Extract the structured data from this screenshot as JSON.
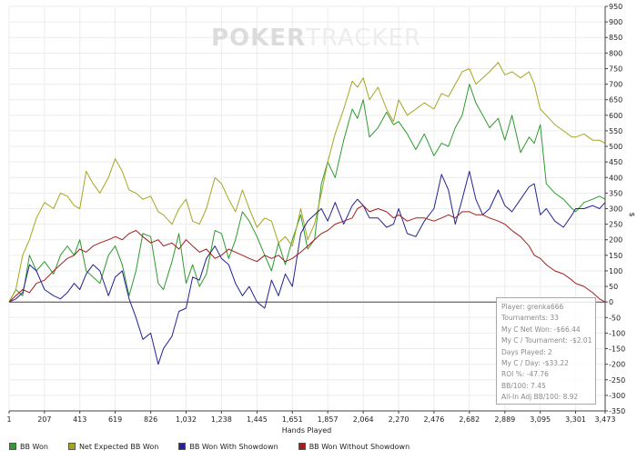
{
  "watermark": {
    "part1": "POKER",
    "part2": "TRACKER"
  },
  "chart_data": {
    "type": "line",
    "xlabel": "Hands Played",
    "ylabel": "$",
    "xlim": [
      1,
      3473
    ],
    "ylim": [
      -350,
      950
    ],
    "x_ticks": [
      "1",
      "207",
      "413",
      "619",
      "826",
      "1,032",
      "1,238",
      "1,445",
      "1,651",
      "1,857",
      "2,064",
      "2,270",
      "2,476",
      "2,682",
      "2,889",
      "3,095",
      "3,301",
      "3,473"
    ],
    "x_tick_values": [
      1,
      207,
      413,
      619,
      826,
      1032,
      1238,
      1445,
      1651,
      1857,
      2064,
      2270,
      2476,
      2682,
      2889,
      3095,
      3301,
      3473
    ],
    "y_ticks": [
      -350,
      -300,
      -250,
      -200,
      -150,
      -100,
      -50,
      0,
      50,
      100,
      150,
      200,
      250,
      300,
      350,
      400,
      450,
      500,
      550,
      600,
      650,
      700,
      750,
      800,
      850,
      900,
      950
    ],
    "legend_position": "bottom",
    "series": [
      {
        "name": "BB Won",
        "color": "#2f9a2f",
        "x": [
          1,
          40,
          80,
          120,
          160,
          207,
          260,
          300,
          340,
          380,
          413,
          450,
          490,
          530,
          580,
          619,
          660,
          700,
          740,
          780,
          826,
          870,
          900,
          950,
          990,
          1032,
          1070,
          1110,
          1150,
          1200,
          1238,
          1280,
          1320,
          1360,
          1400,
          1445,
          1490,
          1530,
          1570,
          1610,
          1651,
          1700,
          1740,
          1780,
          1820,
          1857,
          1900,
          1950,
          2000,
          2030,
          2064,
          2100,
          2150,
          2200,
          2240,
          2270,
          2320,
          2370,
          2420,
          2476,
          2520,
          2560,
          2600,
          2640,
          2682,
          2720,
          2760,
          2800,
          2850,
          2889,
          2930,
          2980,
          3030,
          3060,
          3095,
          3130,
          3180,
          3230,
          3280,
          3301,
          3350,
          3400,
          3440,
          3473
        ],
        "y": [
          0,
          40,
          20,
          150,
          100,
          130,
          90,
          150,
          180,
          150,
          200,
          100,
          80,
          60,
          150,
          180,
          120,
          20,
          100,
          220,
          210,
          60,
          40,
          130,
          220,
          60,
          120,
          50,
          90,
          230,
          220,
          140,
          200,
          290,
          260,
          210,
          150,
          100,
          190,
          120,
          200,
          280,
          170,
          200,
          380,
          450,
          400,
          520,
          620,
          590,
          650,
          530,
          560,
          610,
          570,
          580,
          540,
          490,
          540,
          470,
          510,
          500,
          560,
          600,
          700,
          640,
          600,
          560,
          590,
          520,
          600,
          480,
          530,
          510,
          570,
          380,
          350,
          330,
          300,
          290,
          320,
          330,
          340,
          330
        ]
      },
      {
        "name": "Net Expected BB Won",
        "color": "#a6a61f",
        "x": [
          1,
          40,
          80,
          120,
          160,
          207,
          260,
          300,
          340,
          380,
          413,
          450,
          490,
          530,
          580,
          619,
          660,
          700,
          740,
          780,
          826,
          870,
          900,
          950,
          990,
          1032,
          1070,
          1110,
          1150,
          1200,
          1238,
          1280,
          1320,
          1360,
          1400,
          1445,
          1490,
          1530,
          1570,
          1610,
          1651,
          1700,
          1740,
          1780,
          1820,
          1857,
          1900,
          1950,
          2000,
          2030,
          2064,
          2100,
          2150,
          2200,
          2240,
          2270,
          2320,
          2370,
          2420,
          2476,
          2520,
          2560,
          2600,
          2640,
          2682,
          2720,
          2760,
          2800,
          2850,
          2889,
          2930,
          2980,
          3030,
          3060,
          3095,
          3130,
          3180,
          3230,
          3280,
          3301,
          3350,
          3400,
          3440,
          3473
        ],
        "y": [
          0,
          40,
          150,
          200,
          270,
          320,
          300,
          350,
          340,
          310,
          300,
          420,
          380,
          350,
          400,
          460,
          420,
          360,
          350,
          330,
          340,
          290,
          280,
          250,
          300,
          330,
          260,
          250,
          300,
          400,
          380,
          330,
          290,
          360,
          300,
          240,
          270,
          260,
          190,
          210,
          180,
          300,
          200,
          250,
          350,
          450,
          540,
          620,
          710,
          690,
          720,
          650,
          690,
          620,
          580,
          650,
          600,
          620,
          640,
          620,
          670,
          660,
          700,
          740,
          750,
          700,
          720,
          740,
          770,
          730,
          740,
          720,
          740,
          700,
          620,
          600,
          570,
          550,
          530,
          530,
          540,
          520,
          520,
          510
        ]
      },
      {
        "name": "BB Won With Showdown",
        "color": "#232396",
        "x": [
          1,
          40,
          80,
          120,
          160,
          207,
          260,
          300,
          340,
          380,
          413,
          450,
          490,
          530,
          580,
          619,
          660,
          700,
          740,
          780,
          826,
          870,
          900,
          950,
          990,
          1032,
          1070,
          1110,
          1150,
          1200,
          1238,
          1280,
          1320,
          1360,
          1400,
          1445,
          1490,
          1530,
          1570,
          1610,
          1651,
          1700,
          1740,
          1780,
          1820,
          1857,
          1900,
          1950,
          2000,
          2030,
          2064,
          2100,
          2150,
          2200,
          2240,
          2270,
          2320,
          2370,
          2420,
          2476,
          2520,
          2560,
          2600,
          2640,
          2682,
          2720,
          2760,
          2800,
          2850,
          2889,
          2930,
          2980,
          3030,
          3060,
          3095,
          3130,
          3180,
          3230,
          3280,
          3301,
          3350,
          3400,
          3440,
          3473
        ],
        "y": [
          0,
          10,
          30,
          120,
          100,
          40,
          20,
          10,
          30,
          60,
          40,
          90,
          120,
          100,
          20,
          80,
          100,
          10,
          -50,
          -120,
          -100,
          -200,
          -150,
          -110,
          -30,
          -20,
          80,
          70,
          140,
          180,
          140,
          120,
          60,
          20,
          50,
          0,
          -20,
          70,
          20,
          90,
          50,
          220,
          260,
          280,
          300,
          260,
          320,
          250,
          310,
          330,
          310,
          270,
          270,
          240,
          250,
          300,
          220,
          210,
          260,
          300,
          410,
          360,
          250,
          330,
          420,
          330,
          280,
          300,
          360,
          310,
          290,
          330,
          370,
          380,
          280,
          300,
          260,
          240,
          280,
          300,
          300,
          310,
          300,
          320
        ]
      },
      {
        "name": "BB Won Without Showdown",
        "color": "#a01e1e",
        "x": [
          1,
          40,
          80,
          120,
          160,
          207,
          260,
          300,
          340,
          380,
          413,
          450,
          490,
          530,
          580,
          619,
          660,
          700,
          740,
          780,
          826,
          870,
          900,
          950,
          990,
          1032,
          1070,
          1110,
          1150,
          1200,
          1238,
          1280,
          1320,
          1360,
          1400,
          1445,
          1490,
          1530,
          1570,
          1610,
          1651,
          1700,
          1740,
          1780,
          1820,
          1857,
          1900,
          1950,
          2000,
          2030,
          2064,
          2100,
          2150,
          2200,
          2240,
          2270,
          2320,
          2370,
          2420,
          2476,
          2520,
          2560,
          2600,
          2640,
          2682,
          2720,
          2760,
          2800,
          2850,
          2889,
          2930,
          2980,
          3030,
          3060,
          3095,
          3130,
          3180,
          3230,
          3280,
          3301,
          3350,
          3400,
          3440,
          3473
        ],
        "y": [
          0,
          20,
          40,
          30,
          60,
          70,
          100,
          120,
          140,
          150,
          170,
          160,
          180,
          190,
          200,
          210,
          200,
          220,
          230,
          210,
          190,
          200,
          180,
          190,
          170,
          200,
          180,
          160,
          170,
          140,
          150,
          170,
          160,
          150,
          140,
          130,
          150,
          140,
          150,
          130,
          140,
          160,
          180,
          200,
          220,
          230,
          250,
          260,
          270,
          300,
          310,
          290,
          300,
          290,
          270,
          280,
          260,
          270,
          270,
          260,
          270,
          280,
          270,
          290,
          290,
          280,
          280,
          270,
          260,
          250,
          230,
          210,
          180,
          150,
          140,
          120,
          100,
          90,
          70,
          60,
          50,
          30,
          10,
          0
        ]
      }
    ]
  },
  "stats": {
    "player": "Player: grenka666",
    "tournaments": "Tournaments: 33",
    "net_won": "My C Net Won: -$66.44",
    "per_tournament": "My C / Tournament: -$2.01",
    "days_played": "Days Played: 2",
    "per_day": "My C / Day: -$33.22",
    "roi": "ROI %: -47.76",
    "bb100": "BB/100: 7.45",
    "allin_bb100": "All-In Adj BB/100: 8.92"
  }
}
